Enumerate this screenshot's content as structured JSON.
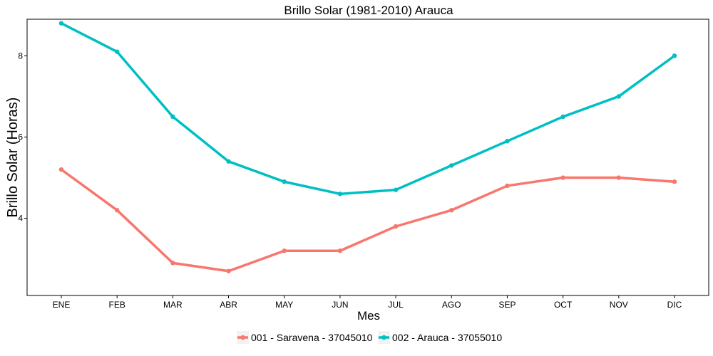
{
  "chart_data": {
    "type": "line",
    "title": "Brillo Solar (1981-2010)  Arauca",
    "xlabel": "Mes",
    "ylabel": "Brillo Solar (Horas)",
    "categories": [
      "ENE",
      "FEB",
      "MAR",
      "ABR",
      "MAY",
      "JUN",
      "JUL",
      "AGO",
      "SEP",
      "OCT",
      "NOV",
      "DIC"
    ],
    "yticks": [
      4,
      6,
      8
    ],
    "ylim": [
      2.1,
      8.9
    ],
    "grid": false,
    "legend_position": "bottom",
    "series": [
      {
        "name": "001 - Saravena - 37045010",
        "color": "#F8766D",
        "values": [
          5.2,
          4.2,
          2.9,
          2.7,
          3.2,
          3.2,
          3.8,
          4.2,
          4.8,
          5.0,
          5.0,
          4.9
        ]
      },
      {
        "name": "002 - Arauca - 37055010",
        "color": "#00BFC4",
        "values": [
          8.8,
          8.1,
          6.5,
          5.4,
          4.9,
          4.6,
          4.7,
          5.3,
          5.9,
          6.5,
          7.0,
          8.0
        ]
      }
    ]
  }
}
